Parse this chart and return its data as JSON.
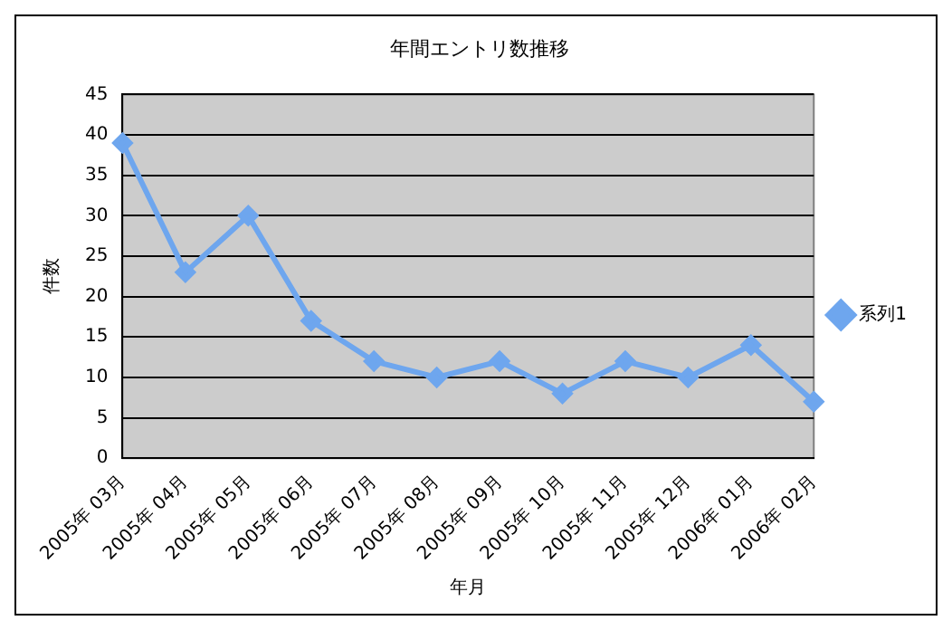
{
  "chart_data": {
    "type": "line",
    "title": "年間エントリ数推移",
    "xlabel": "年月",
    "ylabel": "件数",
    "categories": [
      "2005年 03月",
      "2005年 04月",
      "2005年 05月",
      "2005年 06月",
      "2005年 07月",
      "2005年 08月",
      "2005年 09月",
      "2005年 10月",
      "2005年 11月",
      "2005年 12月",
      "2006年 01月",
      "2006年 02月"
    ],
    "series": [
      {
        "name": "系列1",
        "color": "#6ea6ee",
        "values": [
          39,
          23,
          30,
          17,
          12,
          10,
          12,
          8,
          12,
          10,
          14,
          7
        ]
      }
    ],
    "ylim": [
      0,
      45
    ],
    "yticks": [
      0,
      5,
      10,
      15,
      20,
      25,
      30,
      35,
      40,
      45
    ],
    "grid": "y",
    "legend": "right",
    "marker": "diamond",
    "line_style": "solid"
  }
}
